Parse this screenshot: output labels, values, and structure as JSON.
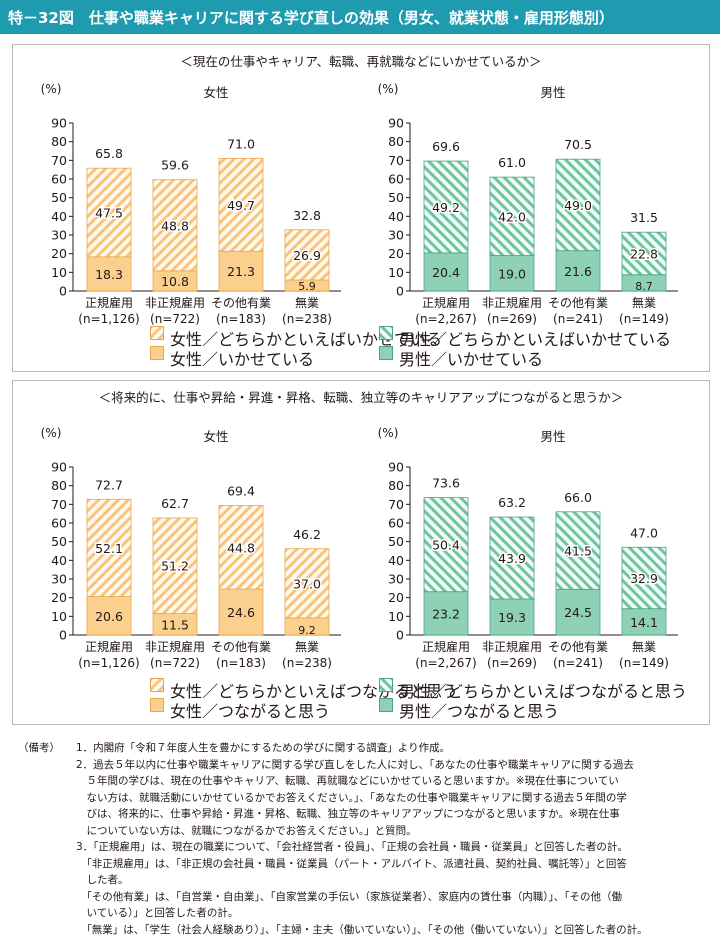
{
  "figure_title": "特－32図　仕事や職業キャリアに関する学び直しの効果（男女、就業状態・雇用形態別）",
  "chart_data": [
    {
      "type": "bar",
      "section_title": "＜現在の仕事やキャリア、転職、再就職などにいかせているか＞",
      "title": "女性",
      "ylabel": "(%)",
      "ylim": [
        0,
        90
      ],
      "yticks": [
        "0",
        "10",
        "20",
        "30",
        "40",
        "50",
        "60",
        "70",
        "80",
        "90"
      ],
      "categories": [
        [
          "正規雇用",
          "(n=1,126)"
        ],
        [
          "非正規雇用",
          "(n=722)"
        ],
        [
          "その他有業",
          "(n=183)"
        ],
        [
          "無業",
          "(n=238)"
        ]
      ],
      "stacked": true,
      "series": [
        {
          "name": "女性／いかせている",
          "values": [
            18.3,
            10.8,
            21.3,
            5.9
          ],
          "labels": [
            "18.3",
            "10.8",
            "21.3",
            "5.9"
          ],
          "color": "#fbd08f",
          "pattern": "solid"
        },
        {
          "name": "女性／どちらかといえばいかせている",
          "values": [
            47.5,
            48.8,
            49.7,
            26.9
          ],
          "labels": [
            "47.5",
            "48.8",
            "49.7",
            "26.9"
          ],
          "color": "#f9c37a",
          "pattern": "hatch"
        }
      ],
      "totals": [
        "65.8",
        "59.6",
        "71.0",
        "32.8"
      ]
    },
    {
      "type": "bar",
      "title": "男性",
      "ylabel": "(%)",
      "ylim": [
        0,
        90
      ],
      "yticks": [
        "0",
        "10",
        "20",
        "30",
        "40",
        "50",
        "60",
        "70",
        "80",
        "90"
      ],
      "categories": [
        [
          "正規雇用",
          "(n=2,267)"
        ],
        [
          "非正規雇用",
          "(n=269)"
        ],
        [
          "その他有業",
          "(n=241)"
        ],
        [
          "無業",
          "(n=149)"
        ]
      ],
      "stacked": true,
      "series": [
        {
          "name": "男性／いかせている",
          "values": [
            20.4,
            19.0,
            21.6,
            8.7
          ],
          "labels": [
            "20.4",
            "19.0",
            "21.6",
            "8.7"
          ],
          "color": "#8fd1b6",
          "pattern": "solid"
        },
        {
          "name": "男性／どちらかといえばいかせている",
          "values": [
            49.2,
            42.0,
            49.0,
            22.8
          ],
          "labels": [
            "49.2",
            "42.0",
            "49.0",
            "22.8"
          ],
          "color": "#6cc4a1",
          "pattern": "hatch"
        }
      ],
      "totals": [
        "69.6",
        "61.0",
        "70.5",
        "31.5"
      ]
    },
    {
      "type": "bar",
      "section_title": "＜将来的に、仕事や昇給・昇進・昇格、転職、独立等のキャリアアップにつながると思うか＞",
      "title": "女性",
      "ylabel": "(%)",
      "ylim": [
        0,
        90
      ],
      "yticks": [
        "0",
        "10",
        "20",
        "30",
        "40",
        "50",
        "60",
        "70",
        "80",
        "90"
      ],
      "categories": [
        [
          "正規雇用",
          "(n=1,126)"
        ],
        [
          "非正規雇用",
          "(n=722)"
        ],
        [
          "その他有業",
          "(n=183)"
        ],
        [
          "無業",
          "(n=238)"
        ]
      ],
      "stacked": true,
      "series": [
        {
          "name": "女性／つながると思う",
          "values": [
            20.6,
            11.5,
            24.6,
            9.2
          ],
          "labels": [
            "20.6",
            "11.5",
            "24.6",
            "9.2"
          ],
          "color": "#fbd08f",
          "pattern": "solid"
        },
        {
          "name": "女性／どちらかといえばつながると思う",
          "values": [
            52.1,
            51.2,
            44.8,
            37.0
          ],
          "labels": [
            "52.1",
            "51.2",
            "44.8",
            "37.0"
          ],
          "color": "#f9c37a",
          "pattern": "hatch"
        }
      ],
      "totals": [
        "72.7",
        "62.7",
        "69.4",
        "46.2"
      ]
    },
    {
      "type": "bar",
      "title": "男性",
      "ylabel": "(%)",
      "ylim": [
        0,
        90
      ],
      "yticks": [
        "0",
        "10",
        "20",
        "30",
        "40",
        "50",
        "60",
        "70",
        "80",
        "90"
      ],
      "categories": [
        [
          "正規雇用",
          "(n=2,267)"
        ],
        [
          "非正規雇用",
          "(n=269)"
        ],
        [
          "その他有業",
          "(n=241)"
        ],
        [
          "無業",
          "(n=149)"
        ]
      ],
      "stacked": true,
      "series": [
        {
          "name": "男性／つながると思う",
          "values": [
            23.2,
            19.3,
            24.5,
            14.1
          ],
          "labels": [
            "23.2",
            "19.3",
            "24.5",
            "14.1"
          ],
          "color": "#8fd1b6",
          "pattern": "solid"
        },
        {
          "name": "男性／どちらかといえばつながると思う",
          "values": [
            50.4,
            43.9,
            41.5,
            32.9
          ],
          "labels": [
            "50.4",
            "43.9",
            "41.5",
            "32.9"
          ],
          "color": "#6cc4a1",
          "pattern": "hatch"
        }
      ],
      "totals": [
        "73.6",
        "63.2",
        "66.0",
        "47.0"
      ]
    }
  ],
  "legend1": {
    "female_hatch": "女性／どちらかといえばいかせている",
    "female_solid": "女性／いかせている",
    "male_hatch": "男性／どちらかといえばいかせている",
    "male_solid": "男性／いかせている"
  },
  "legend2": {
    "female_hatch": "女性／どちらかといえばつながると思う",
    "female_solid": "女性／つながると思う",
    "male_hatch": "男性／どちらかといえばつながると思う",
    "male_solid": "男性／つながると思う"
  },
  "notes": {
    "label": "（備考）",
    "lines": [
      "1．内閣府「令和７年度人生を豊かにするための学びに関する調査」より作成。",
      "2．過去５年以内に仕事や職業キャリアに関する学び直しをした人に対し、「あなたの仕事や職業キャリアに関する過去",
      "　５年間の学びは、現在の仕事やキャリア、転職、再就職などにいかせていると思いますか。※現在仕事についてい",
      "　ない方は、就職活動にいかせているかでお答えください。」、「あなたの仕事や職業キャリアに関する過去５年間の学",
      "　びは、将来的に、仕事や昇給・昇進・昇格、転職、独立等のキャリアアップにつながると思いますか。※現在仕事",
      "　についていない方は、就職につながるかでお答えください。」と質問。",
      "3．「正規雇用」は、現在の職業について、「会社経営者・役員」、「正規の会社員・職員・従業員」と回答した者の計。",
      "　「非正規雇用」は、「非正規の会社員・職員・従業員（パート・アルバイト、派遣社員、契約社員、嘱託等）」と回答",
      "　した者。",
      "　「その他有業」は、「自営業・自由業」、「自家営業の手伝い（家族従業者）、家庭内の賃仕事（内職）」、「その他（働",
      "　いている）」と回答した者の計。",
      "　「無業」は、「学生（社会人経験あり）」、「主婦・主夫（働いていない）」、「その他（働いていない）」と回答した者の計。"
    ]
  }
}
